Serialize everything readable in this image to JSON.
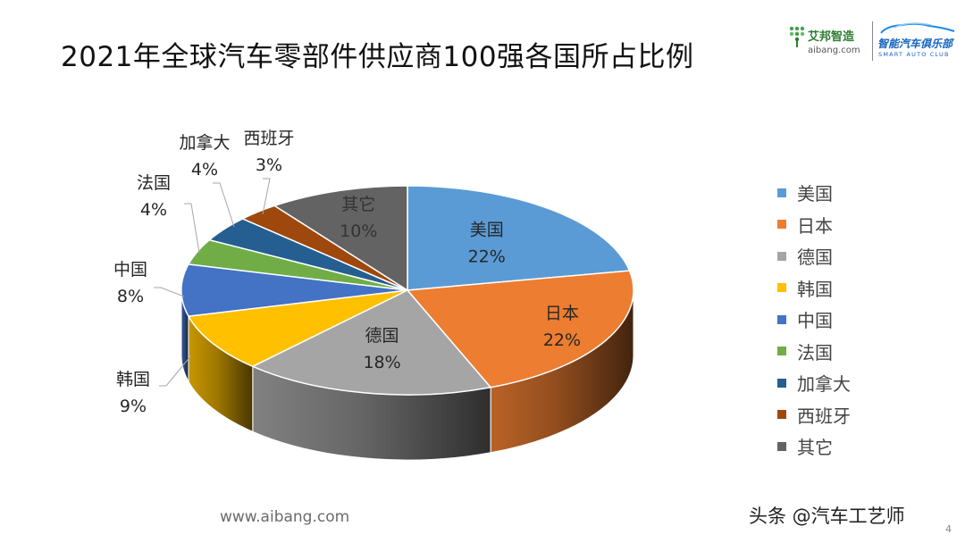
{
  "title": "2021年全球汽车零部件供应商100强各国所占比例",
  "logo": {
    "aibang_name": "艾邦智造",
    "aibang_url": "aibang.com",
    "club_name": "智能汽车俱乐部",
    "club_en": "SMART AUTO CLUB"
  },
  "footer_url": "www.aibang.com",
  "watermark": "头条 @汽车工艺师",
  "page_number": "4",
  "chart_data": {
    "type": "pie",
    "style": "3d-pie",
    "legend_position": "right",
    "categories": [
      "美国",
      "日本",
      "德国",
      "韩国",
      "中国",
      "法国",
      "加拿大",
      "西班牙",
      "其它"
    ],
    "values": [
      22,
      22,
      18,
      9,
      8,
      4,
      4,
      3,
      10
    ],
    "labels": [
      "22%",
      "22%",
      "18%",
      "9%",
      "8%",
      "4%",
      "4%",
      "3%",
      "10%"
    ],
    "colors": [
      "#5b9bd5",
      "#ed7d31",
      "#a5a5a5",
      "#ffc000",
      "#4472c4",
      "#70ad47",
      "#255e91",
      "#9e480e",
      "#636363"
    ]
  }
}
